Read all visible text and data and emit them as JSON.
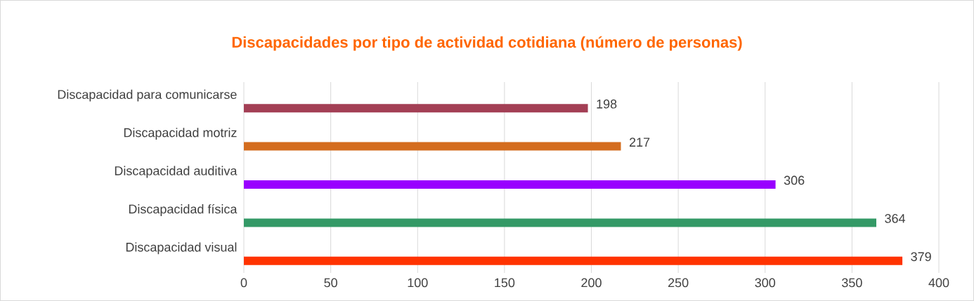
{
  "chart_data": {
    "type": "bar",
    "orientation": "horizontal",
    "title": "Discapacidades por tipo de actividad cotidiana (número de personas)",
    "categories": [
      "Discapacidad para comunicarse",
      "Discapacidad motriz",
      "Discapacidad auditiva",
      "Discapacidad física",
      "Discapacidad visual"
    ],
    "values": [
      198,
      217,
      306,
      364,
      379
    ],
    "colors": [
      "#a33f55",
      "#d46d1f",
      "#9900ff",
      "#339966",
      "#ff3300"
    ],
    "xlim": [
      0,
      400
    ],
    "xticks": [
      0,
      50,
      100,
      150,
      200,
      250,
      300,
      350,
      400
    ],
    "grid": "x",
    "data_labels": true
  }
}
